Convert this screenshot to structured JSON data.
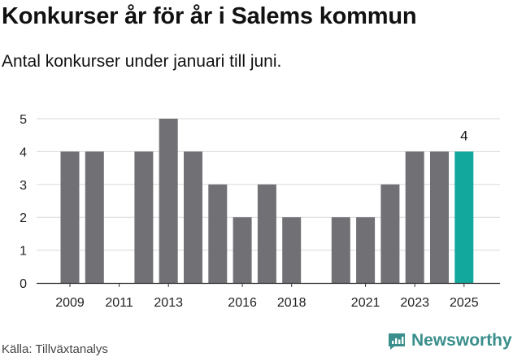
{
  "header": {
    "title": "Konkurser år för år i Salems kommun",
    "subtitle": "Antal konkurser under januari till juni."
  },
  "footer": {
    "source": "Källa: Tillväxtanalys",
    "brand": "Newsworthy"
  },
  "colors": {
    "bar": "#717075",
    "highlight": "#13a89e",
    "grid": "#d9d9d9",
    "brand": "#3a8f8c"
  },
  "chart_data": {
    "type": "bar",
    "categories": [
      "2009",
      "2010",
      "2011",
      "2012",
      "2013",
      "2014",
      "2015",
      "2016",
      "2017",
      "2018",
      "2019",
      "2020",
      "2021",
      "2022",
      "2023",
      "2024",
      "2025"
    ],
    "values": [
      4,
      4,
      0,
      4,
      5,
      4,
      3,
      2,
      3,
      2,
      0,
      2,
      2,
      3,
      4,
      4,
      4
    ],
    "highlight_index": 16,
    "highlight_label": "4",
    "x_tick_labels": [
      "2009",
      "2011",
      "2013",
      "2016",
      "2018",
      "2021",
      "2023",
      "2025"
    ],
    "y_ticks": [
      0,
      1,
      2,
      3,
      4,
      5
    ],
    "ylim": [
      0,
      5
    ],
    "grid": true
  }
}
